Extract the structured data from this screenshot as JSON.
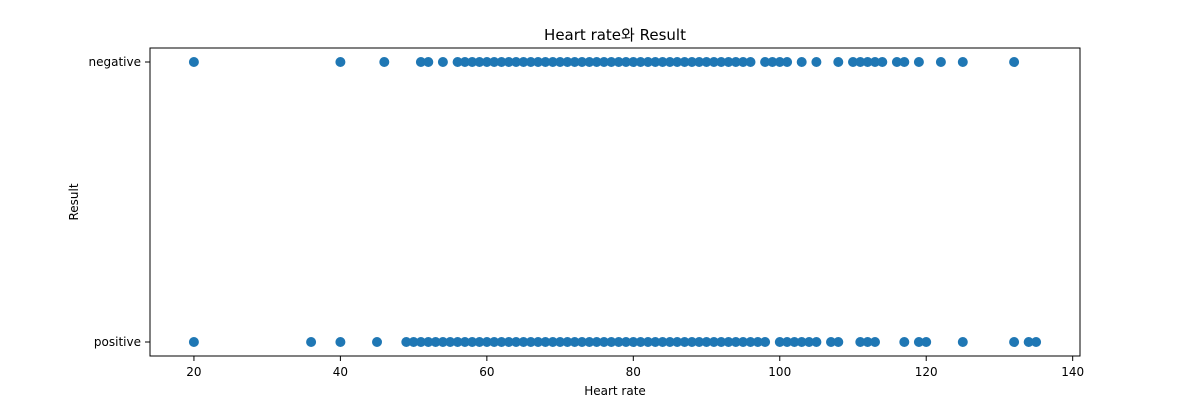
{
  "chart_data": {
    "type": "scatter",
    "title": "Heart rate와 Result",
    "xlabel": "Heart rate",
    "ylabel": "Result",
    "xlim": [
      14,
      141
    ],
    "xticks": [
      20,
      40,
      60,
      80,
      100,
      120,
      140
    ],
    "categories": [
      "positive",
      "negative"
    ],
    "grid": false,
    "legend": "none",
    "marker_color": "#1f77b4",
    "series": [
      {
        "category": "negative",
        "x": [
          20,
          40,
          46,
          51,
          52,
          54,
          56,
          57,
          58,
          59,
          60,
          61,
          62,
          63,
          64,
          65,
          66,
          67,
          68,
          69,
          70,
          71,
          72,
          73,
          74,
          75,
          76,
          77,
          78,
          79,
          80,
          81,
          82,
          83,
          84,
          85,
          86,
          87,
          88,
          89,
          90,
          91,
          92,
          93,
          94,
          95,
          96,
          98,
          99,
          100,
          101,
          103,
          105,
          108,
          110,
          111,
          112,
          113,
          114,
          116,
          117,
          119,
          122,
          125,
          132
        ]
      },
      {
        "category": "positive",
        "x": [
          20,
          36,
          40,
          45,
          49,
          50,
          51,
          52,
          53,
          54,
          55,
          56,
          57,
          58,
          59,
          60,
          61,
          62,
          63,
          64,
          65,
          66,
          67,
          68,
          69,
          70,
          71,
          72,
          73,
          74,
          75,
          76,
          77,
          78,
          79,
          80,
          81,
          82,
          83,
          84,
          85,
          86,
          87,
          88,
          89,
          90,
          91,
          92,
          93,
          94,
          95,
          96,
          97,
          98,
          100,
          101,
          102,
          103,
          104,
          105,
          107,
          108,
          111,
          112,
          113,
          117,
          119,
          120,
          125,
          132,
          134,
          135
        ]
      }
    ]
  }
}
